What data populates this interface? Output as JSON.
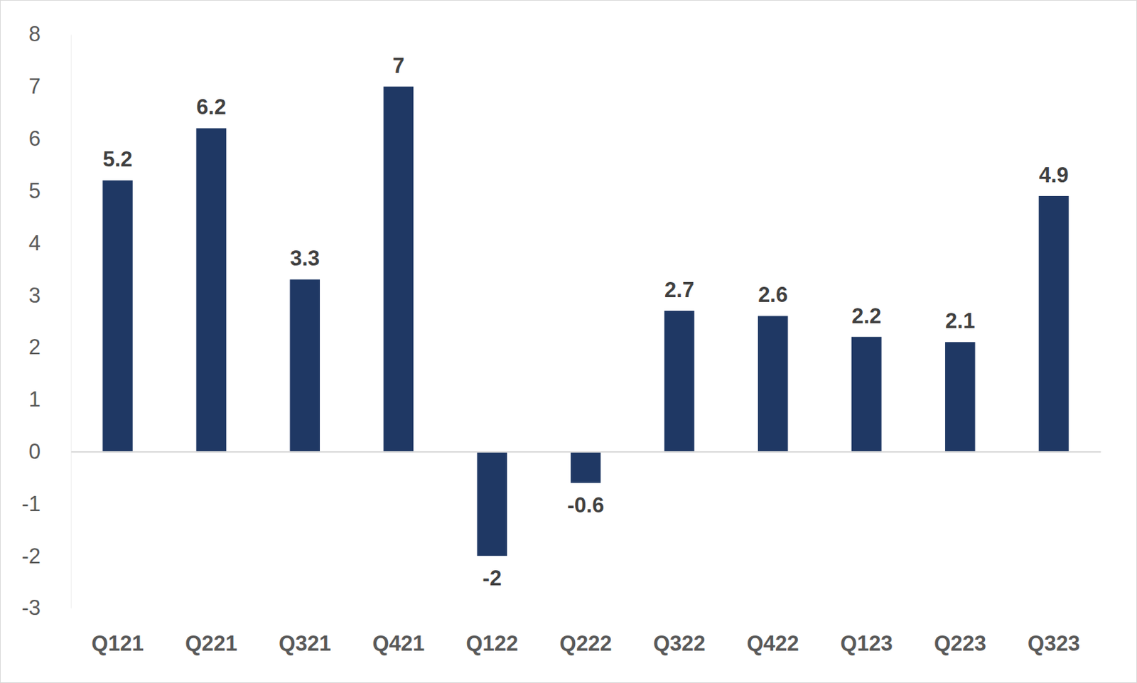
{
  "chart_data": {
    "type": "bar",
    "categories": [
      "Q121",
      "Q221",
      "Q321",
      "Q421",
      "Q122",
      "Q222",
      "Q322",
      "Q422",
      "Q123",
      "Q223",
      "Q323"
    ],
    "values": [
      5.2,
      6.2,
      3.3,
      7,
      -2,
      -0.6,
      2.7,
      2.6,
      2.2,
      2.1,
      4.9
    ],
    "color": "#1f3864",
    "ylim": [
      -3,
      8
    ],
    "yticks": [
      -3,
      -2,
      -1,
      0,
      1,
      2,
      3,
      4,
      5,
      6,
      7,
      8
    ],
    "grid": false,
    "data_labels": true
  }
}
